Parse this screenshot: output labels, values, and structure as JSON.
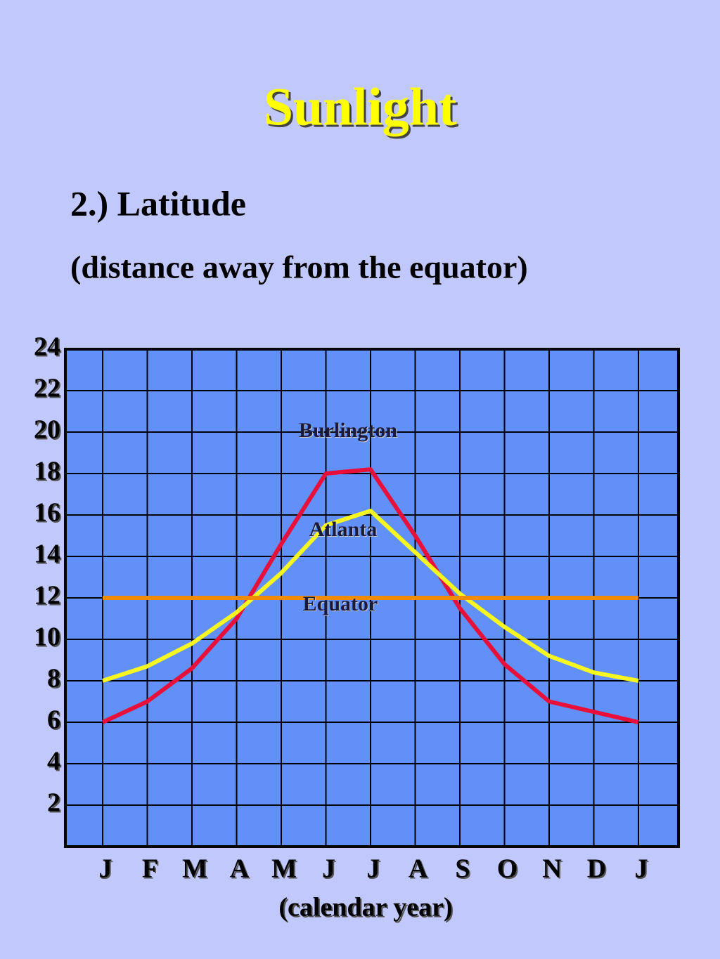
{
  "chart_data": {
    "type": "line",
    "title": "Sunlight",
    "subtitle": "2.) Latitude",
    "subtitle2": "(distance away from the equator)",
    "x_label": "(calendar year)",
    "categories": [
      "J",
      "F",
      "M",
      "A",
      "M",
      "J",
      "J",
      "A",
      "S",
      "O",
      "N",
      "D",
      "J"
    ],
    "series": [
      {
        "name": "Burlington",
        "color": "#e8103a",
        "values": [
          6,
          7,
          8.6,
          11,
          14.6,
          18,
          18.2,
          15,
          11.5,
          8.8,
          7,
          6.5,
          6
        ]
      },
      {
        "name": "Atlanta",
        "color": "#f8f820",
        "values": [
          8,
          8.7,
          9.8,
          11.3,
          13.2,
          15.5,
          16.2,
          14.2,
          12.2,
          10.6,
          9.2,
          8.4,
          8
        ]
      },
      {
        "name": "Equator",
        "color": "#f08c00",
        "values": [
          12,
          12,
          12,
          12,
          12,
          12,
          12,
          12,
          12,
          12,
          12,
          12,
          12
        ]
      }
    ],
    "ylim": [
      0,
      24
    ],
    "yticks": [
      2,
      4,
      6,
      8,
      10,
      12,
      14,
      16,
      18,
      20,
      22,
      24
    ],
    "grid": true
  }
}
